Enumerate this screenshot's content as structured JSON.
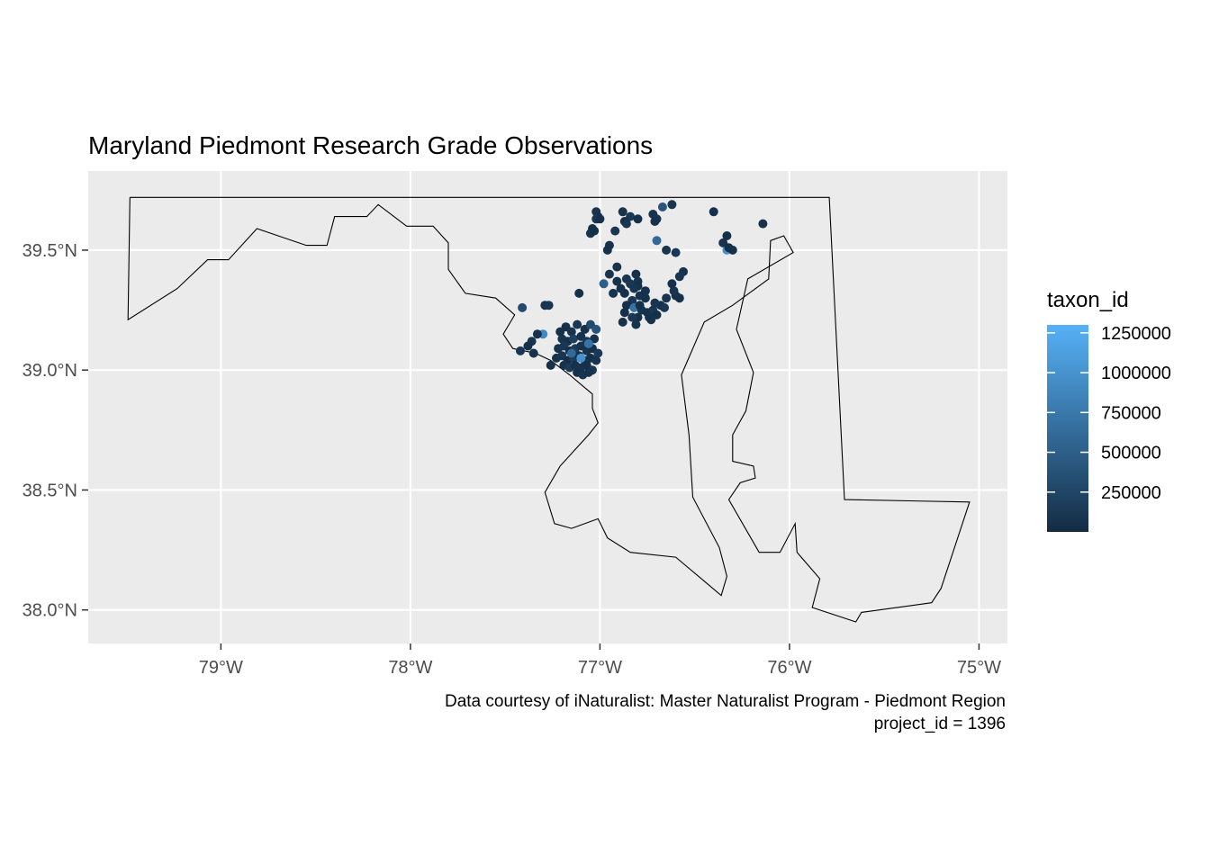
{
  "chart_data": {
    "type": "scatter",
    "title": "Maryland Piedmont Research Grade Observations",
    "caption_lines": [
      "Data courtesy of iNaturalist: Master Naturalist Program - Piedmont Region",
      "project_id = 1396"
    ],
    "xlabel": "",
    "ylabel": "",
    "xlim": [
      -79.7,
      -74.85
    ],
    "ylim": [
      37.86,
      39.83
    ],
    "x_ticks": [
      -79,
      -78,
      -77,
      -76,
      -75
    ],
    "x_tick_labels": [
      "79°W",
      "78°W",
      "77°W",
      "76°W",
      "75°W"
    ],
    "y_ticks": [
      38.0,
      38.5,
      39.0,
      39.5
    ],
    "y_tick_labels": [
      "38.0°N",
      "38.5°N",
      "39.0°N",
      "39.5°N"
    ],
    "grid": true,
    "legend": {
      "title": "taxon_id",
      "placement": "right",
      "type": "colorbar",
      "range": [
        1,
        1300000
      ],
      "breaks": [
        250000,
        500000,
        750000,
        1000000,
        1250000
      ],
      "break_labels": [
        "250000",
        "500000",
        "750000",
        "1000000",
        "1250000"
      ],
      "color_low": "#132B43",
      "color_high": "#56B1F7"
    },
    "colors": {
      "panel_background": "#EBEBEB",
      "grid": "#FFFFFF",
      "outline": "#000000",
      "axis_text": "#4D4D4D",
      "text": "#000000"
    },
    "boundary_outline": [
      [
        -79.48,
        39.72
      ],
      [
        -75.79,
        39.72
      ],
      [
        -75.71,
        38.46
      ],
      [
        -75.05,
        38.45
      ],
      [
        -75.2,
        38.09
      ],
      [
        -75.25,
        38.03
      ],
      [
        -75.62,
        37.99
      ],
      [
        -75.65,
        37.95
      ],
      [
        -75.88,
        38.01
      ],
      [
        -75.84,
        38.13
      ],
      [
        -75.96,
        38.24
      ],
      [
        -75.97,
        38.36
      ],
      [
        -76.05,
        38.24
      ],
      [
        -76.16,
        38.24
      ],
      [
        -76.32,
        38.46
      ],
      [
        -76.26,
        38.53
      ],
      [
        -76.18,
        38.55
      ],
      [
        -76.19,
        38.6
      ],
      [
        -76.3,
        38.62
      ],
      [
        -76.3,
        38.73
      ],
      [
        -76.23,
        38.83
      ],
      [
        -76.19,
        38.99
      ],
      [
        -76.28,
        39.17
      ],
      [
        -76.22,
        39.38
      ],
      [
        -75.98,
        39.49
      ],
      [
        -76.03,
        39.56
      ],
      [
        -76.1,
        39.54
      ],
      [
        -76.11,
        39.38
      ],
      [
        -76.3,
        39.27
      ],
      [
        -76.45,
        39.2
      ],
      [
        -76.57,
        38.98
      ],
      [
        -76.53,
        38.73
      ],
      [
        -76.51,
        38.47
      ],
      [
        -76.37,
        38.26
      ],
      [
        -76.33,
        38.14
      ],
      [
        -76.36,
        38.06
      ],
      [
        -76.45,
        38.12
      ],
      [
        -76.6,
        38.22
      ],
      [
        -76.84,
        38.24
      ],
      [
        -76.96,
        38.3
      ],
      [
        -77.01,
        38.38
      ],
      [
        -77.15,
        38.34
      ],
      [
        -77.24,
        38.36
      ],
      [
        -77.29,
        38.49
      ],
      [
        -77.21,
        38.6
      ],
      [
        -77.06,
        38.73
      ],
      [
        -77.01,
        38.78
      ],
      [
        -77.04,
        38.84
      ],
      [
        -77.04,
        38.9
      ],
      [
        -77.1,
        38.94
      ],
      [
        -77.16,
        38.98
      ],
      [
        -77.26,
        39.04
      ],
      [
        -77.34,
        39.07
      ],
      [
        -77.46,
        39.09
      ],
      [
        -77.51,
        39.15
      ],
      [
        -77.45,
        39.23
      ],
      [
        -77.55,
        39.3
      ],
      [
        -77.71,
        39.32
      ],
      [
        -77.8,
        39.42
      ],
      [
        -77.8,
        39.53
      ],
      [
        -77.88,
        39.6
      ],
      [
        -78.02,
        39.6
      ],
      [
        -78.17,
        39.69
      ],
      [
        -78.23,
        39.64
      ],
      [
        -78.4,
        39.64
      ],
      [
        -78.44,
        39.52
      ],
      [
        -78.55,
        39.52
      ],
      [
        -78.81,
        39.59
      ],
      [
        -78.96,
        39.46
      ],
      [
        -79.07,
        39.46
      ],
      [
        -79.23,
        39.34
      ],
      [
        -79.49,
        39.21
      ],
      [
        -79.48,
        39.72
      ]
    ],
    "points": [
      [
        -77.18,
        39.18,
        50000
      ],
      [
        -77.15,
        39.16,
        80000
      ],
      [
        -77.12,
        39.19,
        120000
      ],
      [
        -77.08,
        39.17,
        60000
      ],
      [
        -77.05,
        39.19,
        300000
      ],
      [
        -77.2,
        39.13,
        90000
      ],
      [
        -77.17,
        39.12,
        45000
      ],
      [
        -77.14,
        39.13,
        200000
      ],
      [
        -77.1,
        39.14,
        70000
      ],
      [
        -77.07,
        39.12,
        110000
      ],
      [
        -77.03,
        39.13,
        55000
      ],
      [
        -77.22,
        39.09,
        85000
      ],
      [
        -77.19,
        39.1,
        130000
      ],
      [
        -77.16,
        39.08,
        40000
      ],
      [
        -77.13,
        39.09,
        160000
      ],
      [
        -77.1,
        39.1,
        75000
      ],
      [
        -77.07,
        39.08,
        95000
      ],
      [
        -77.04,
        39.09,
        50000
      ],
      [
        -77.01,
        39.07,
        140000
      ],
      [
        -77.23,
        39.05,
        60000
      ],
      [
        -77.2,
        39.06,
        100000
      ],
      [
        -77.17,
        39.04,
        35000
      ],
      [
        -77.14,
        39.05,
        180000
      ],
      [
        -77.11,
        39.06,
        65000
      ],
      [
        -77.08,
        39.04,
        120000
      ],
      [
        -77.05,
        39.05,
        45000
      ],
      [
        -77.02,
        39.04,
        90000
      ],
      [
        -77.19,
        39.02,
        70000
      ],
      [
        -77.16,
        39.01,
        150000
      ],
      [
        -77.13,
        39.02,
        55000
      ],
      [
        -77.1,
        39.01,
        80000
      ],
      [
        -77.07,
        39.02,
        40000
      ],
      [
        -77.04,
        39.0,
        110000
      ],
      [
        -77.12,
        38.99,
        60000
      ],
      [
        -77.09,
        38.98,
        95000
      ],
      [
        -77.06,
        38.99,
        70000
      ],
      [
        -77.26,
        39.02,
        50000
      ],
      [
        -77.3,
        39.15,
        900000
      ],
      [
        -77.33,
        39.15,
        60000
      ],
      [
        -77.36,
        39.12,
        80000
      ],
      [
        -77.38,
        39.1,
        45000
      ],
      [
        -77.42,
        39.08,
        120000
      ],
      [
        -77.35,
        39.07,
        70000
      ],
      [
        -77.21,
        39.16,
        55000
      ],
      [
        -77.1,
        39.05,
        1000000
      ],
      [
        -77.06,
        39.11,
        700000
      ],
      [
        -77.02,
        39.17,
        400000
      ],
      [
        -77.15,
        39.07,
        600000
      ],
      [
        -77.41,
        39.26,
        300000
      ],
      [
        -77.29,
        39.27,
        80000
      ],
      [
        -77.27,
        39.27,
        120000
      ],
      [
        -77.11,
        39.32,
        45000
      ],
      [
        -77.02,
        39.66,
        90000
      ],
      [
        -77.01,
        39.64,
        60000
      ],
      [
        -77.02,
        39.63,
        110000
      ],
      [
        -77.0,
        39.63,
        50000
      ],
      [
        -76.88,
        39.66,
        80000
      ],
      [
        -76.84,
        39.64,
        130000
      ],
      [
        -76.8,
        39.63,
        60000
      ],
      [
        -76.87,
        39.62,
        45000
      ],
      [
        -76.86,
        39.61,
        100000
      ],
      [
        -76.72,
        39.65,
        70000
      ],
      [
        -76.7,
        39.63,
        85000
      ],
      [
        -76.71,
        39.62,
        55000
      ],
      [
        -76.67,
        39.68,
        400000
      ],
      [
        -76.62,
        39.69,
        90000
      ],
      [
        -76.4,
        39.66,
        60000
      ],
      [
        -76.14,
        39.61,
        70000
      ],
      [
        -77.04,
        39.59,
        60000
      ],
      [
        -77.05,
        39.57,
        90000
      ],
      [
        -77.03,
        39.58,
        45000
      ],
      [
        -76.92,
        39.58,
        110000
      ],
      [
        -76.95,
        39.52,
        70000
      ],
      [
        -76.96,
        39.5,
        55000
      ],
      [
        -76.7,
        39.54,
        600000
      ],
      [
        -76.65,
        39.5,
        80000
      ],
      [
        -76.6,
        39.49,
        120000
      ],
      [
        -76.33,
        39.56,
        50000
      ],
      [
        -76.35,
        39.53,
        80000
      ],
      [
        -76.33,
        39.5,
        1000000
      ],
      [
        -76.3,
        39.5,
        60000
      ],
      [
        -76.32,
        39.51,
        45000
      ],
      [
        -76.91,
        39.43,
        70000
      ],
      [
        -76.95,
        39.4,
        90000
      ],
      [
        -76.98,
        39.36,
        500000
      ],
      [
        -76.91,
        39.37,
        60000
      ],
      [
        -76.86,
        39.38,
        110000
      ],
      [
        -76.81,
        39.4,
        50000
      ],
      [
        -76.8,
        39.37,
        80000
      ],
      [
        -76.8,
        39.35,
        45000
      ],
      [
        -76.84,
        39.36,
        130000
      ],
      [
        -76.89,
        39.34,
        60000
      ],
      [
        -76.93,
        39.32,
        85000
      ],
      [
        -76.87,
        39.32,
        55000
      ],
      [
        -76.82,
        39.34,
        100000
      ],
      [
        -76.79,
        39.31,
        70000
      ],
      [
        -76.76,
        39.3,
        45000
      ],
      [
        -76.83,
        39.29,
        120000
      ],
      [
        -76.86,
        39.27,
        60000
      ],
      [
        -76.82,
        39.26,
        700000
      ],
      [
        -76.78,
        39.25,
        80000
      ],
      [
        -76.75,
        39.24,
        50000
      ],
      [
        -76.72,
        39.25,
        110000
      ],
      [
        -76.68,
        39.27,
        60000
      ],
      [
        -76.65,
        39.3,
        90000
      ],
      [
        -76.6,
        39.31,
        45000
      ],
      [
        -76.56,
        39.41,
        70000
      ],
      [
        -76.58,
        39.39,
        100000
      ],
      [
        -76.62,
        39.36,
        55000
      ],
      [
        -76.61,
        39.33,
        80000
      ],
      [
        -76.58,
        39.3,
        60000
      ],
      [
        -76.66,
        39.26,
        120000
      ],
      [
        -76.7,
        39.23,
        45000
      ],
      [
        -76.73,
        39.21,
        90000
      ],
      [
        -76.8,
        39.22,
        60000
      ],
      [
        -76.83,
        39.22,
        130000
      ],
      [
        -76.87,
        39.24,
        50000
      ],
      [
        -76.88,
        39.2,
        70000
      ],
      [
        -76.81,
        39.19,
        85000
      ],
      [
        -76.74,
        39.22,
        55000
      ],
      [
        -76.71,
        39.28,
        100000
      ],
      [
        -76.76,
        39.33,
        60000
      ],
      [
        -76.79,
        39.27,
        45000
      ]
    ]
  }
}
